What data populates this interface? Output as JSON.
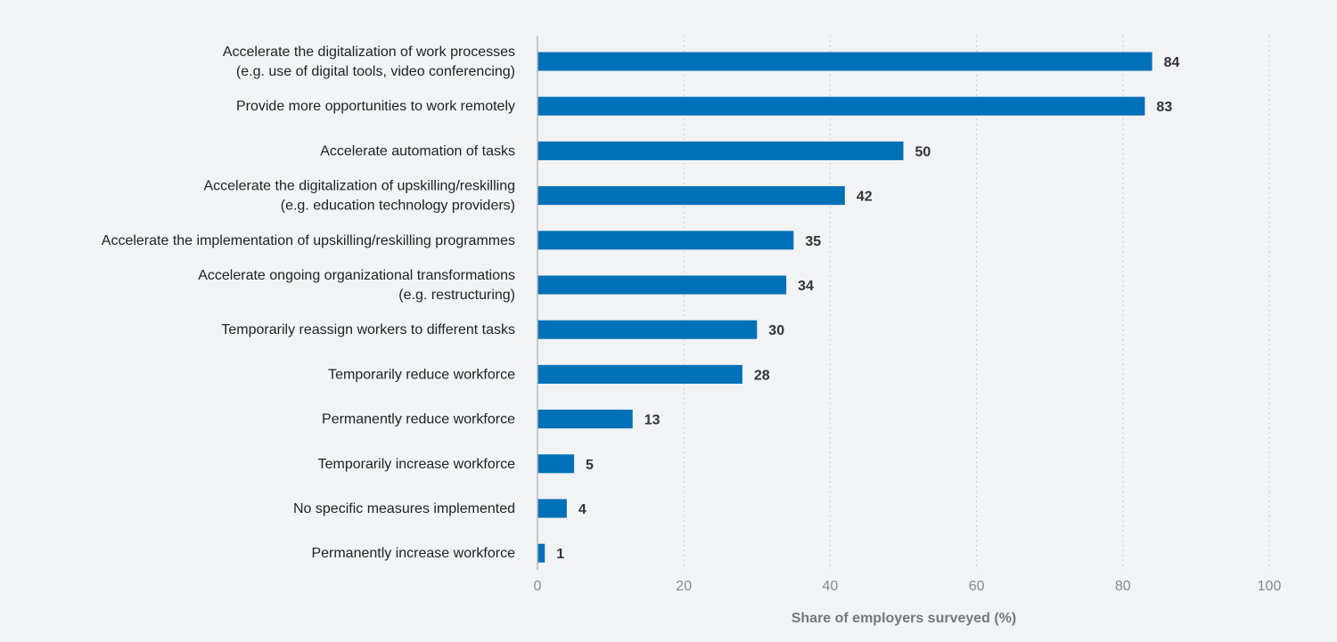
{
  "chart_data": {
    "type": "bar",
    "orientation": "horizontal",
    "categories": [
      [
        "Accelerate the digitalization of work processes",
        "(e.g. use of digital tools, video conferencing)"
      ],
      [
        "Provide more opportunities to work remotely"
      ],
      [
        "Accelerate automation of tasks"
      ],
      [
        "Accelerate the digitalization of upskilling/reskilling",
        "(e.g. education technology providers)"
      ],
      [
        "Accelerate the implementation of upskilling/reskilling programmes"
      ],
      [
        "Accelerate ongoing organizational transformations",
        "(e.g. restructuring)"
      ],
      [
        "Temporarily reassign workers to different tasks"
      ],
      [
        "Temporarily reduce workforce"
      ],
      [
        "Permanently reduce workforce"
      ],
      [
        "Temporarily increase workforce"
      ],
      [
        "No specific measures implemented"
      ],
      [
        "Permanently increase workforce"
      ]
    ],
    "values": [
      84,
      83,
      50,
      42,
      35,
      34,
      30,
      28,
      13,
      5,
      4,
      1
    ],
    "xlabel": "Share of employers surveyed (%)",
    "xlim": [
      0,
      100
    ],
    "xticks": [
      "0",
      "20",
      "40",
      "60",
      "80",
      "100"
    ],
    "grid": "vertical dotted",
    "bar_color": "#0070b8",
    "background": "#f2f3f5"
  }
}
